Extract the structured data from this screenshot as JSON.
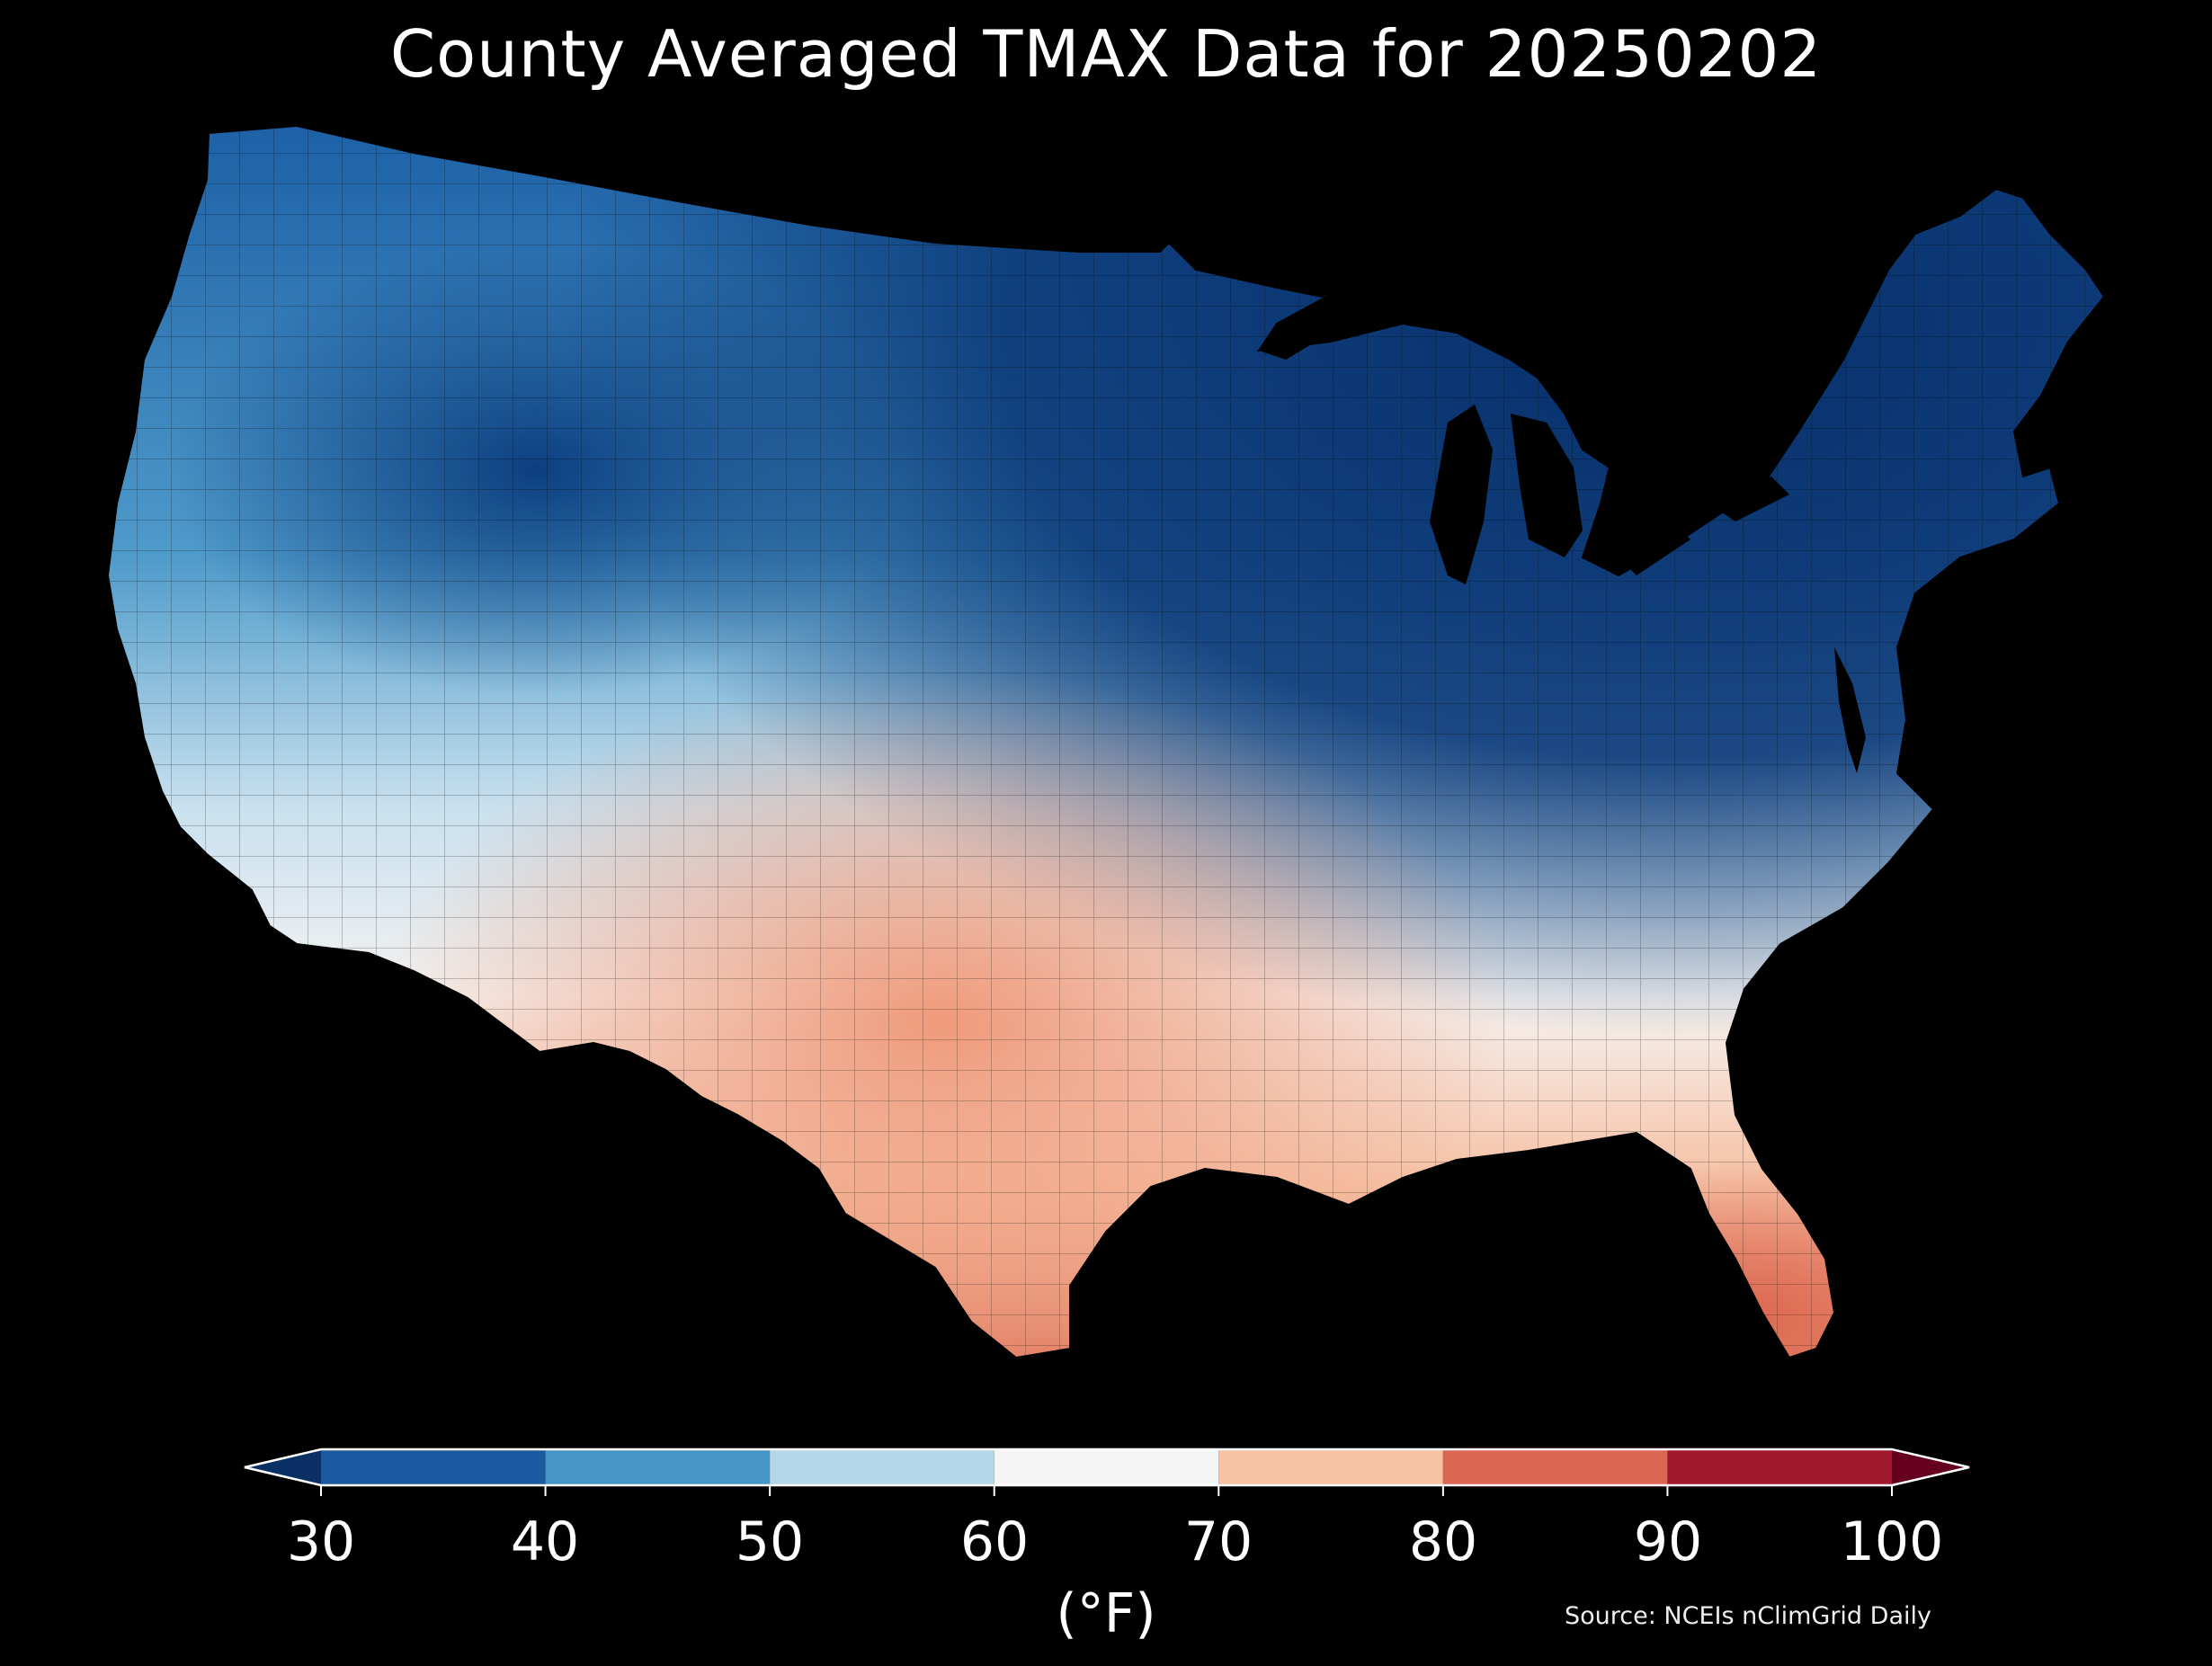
{
  "title": "County Averaged TMAX Data for 20250202",
  "colorbar": {
    "ticks": [
      "30",
      "40",
      "50",
      "60",
      "70",
      "80",
      "90",
      "100"
    ],
    "unit": "(°F)",
    "bins": [
      {
        "from": 30,
        "to": 40,
        "color": "#1a5aa0"
      },
      {
        "from": 40,
        "to": 50,
        "color": "#4595c6"
      },
      {
        "from": 50,
        "to": 60,
        "color": "#b4d6e9"
      },
      {
        "from": 60,
        "to": 70,
        "color": "#f5f5f5"
      },
      {
        "from": 70,
        "to": 80,
        "color": "#f8c2a5"
      },
      {
        "from": 80,
        "to": 90,
        "color": "#db6651"
      },
      {
        "from": 90,
        "to": 100,
        "color": "#a0182b"
      }
    ],
    "under_color": "#0a3065",
    "over_color": "#65001f"
  },
  "source": "Source: NCEIs nClimGrid Daily",
  "map": {
    "background": "#000000",
    "regions": "contiguous-us-counties"
  }
}
